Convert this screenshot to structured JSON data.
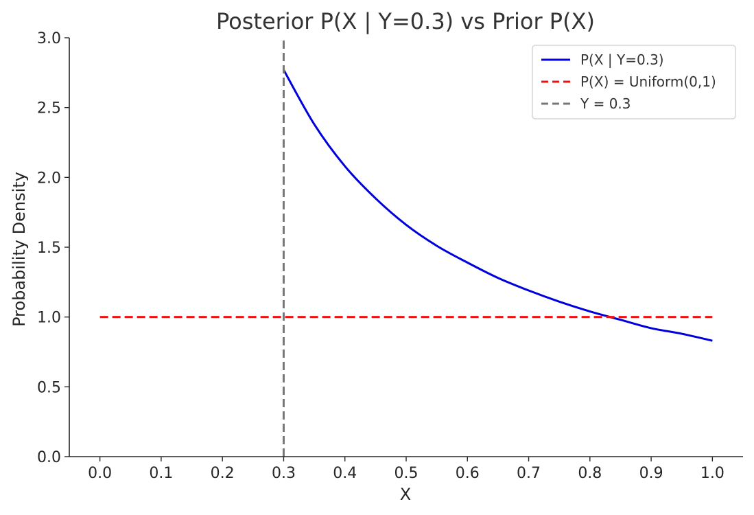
{
  "chart_data": {
    "type": "line",
    "title": "Posterior P(X | Y=0.3) vs Prior P(X)",
    "xlabel": "X",
    "ylabel": "Probability Density",
    "xlim": [
      -0.05,
      1.05
    ],
    "ylim": [
      0.0,
      3.0
    ],
    "xticks": [
      0.0,
      0.1,
      0.2,
      0.3,
      0.4,
      0.5,
      0.6,
      0.7,
      0.8,
      0.9,
      1.0
    ],
    "xtick_labels": [
      "0.0",
      "0.1",
      "0.2",
      "0.3",
      "0.4",
      "0.5",
      "0.6",
      "0.7",
      "0.8",
      "0.9",
      "1.0"
    ],
    "yticks": [
      0.0,
      0.5,
      1.0,
      1.5,
      2.0,
      2.5,
      3.0
    ],
    "ytick_labels": [
      "0.0",
      "0.5",
      "1.0",
      "1.5",
      "2.0",
      "2.5",
      "3.0"
    ],
    "grid": false,
    "legend_position": "top-right",
    "series": [
      {
        "name": "P(X | Y=0.3)",
        "style": "solid",
        "color": "#0000dd",
        "x": [
          0.3,
          0.35,
          0.4,
          0.45,
          0.5,
          0.55,
          0.6,
          0.65,
          0.7,
          0.75,
          0.8,
          0.85,
          0.9,
          0.95,
          1.0
        ],
        "y": [
          2.77,
          2.38,
          2.08,
          1.85,
          1.66,
          1.51,
          1.39,
          1.28,
          1.19,
          1.11,
          1.04,
          0.98,
          0.92,
          0.88,
          0.83
        ]
      },
      {
        "name": "P(X) = Uniform(0,1)",
        "style": "dashed",
        "color": "#ee1111",
        "x": [
          0.0,
          1.0
        ],
        "y": [
          1.0,
          1.0
        ]
      },
      {
        "name": "Y = 0.3",
        "style": "dashed",
        "color": "#777777",
        "orientation": "vertical",
        "x": [
          0.3,
          0.3
        ],
        "y": [
          0.0,
          3.0
        ]
      }
    ]
  }
}
